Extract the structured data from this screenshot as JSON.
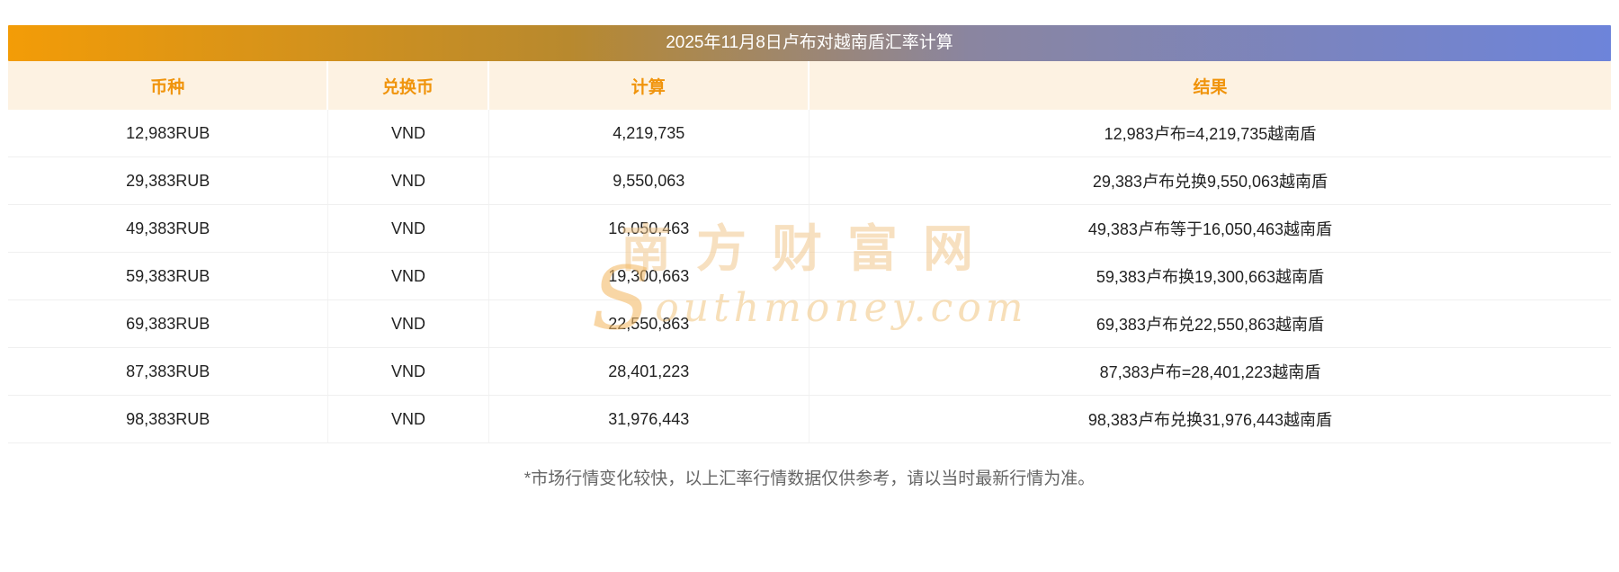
{
  "page_title": "2025年11月8日卢布对越南盾汇率计算",
  "chart_data": {
    "type": "table",
    "title": "2025年11月8日卢布对越南盾汇率计算",
    "columns": [
      "币种",
      "兑换币",
      "计算",
      "结果"
    ],
    "rows": [
      [
        "12,983RUB",
        "VND",
        "4,219,735",
        "12,983卢布=4,219,735越南盾"
      ],
      [
        "29,383RUB",
        "VND",
        "9,550,063",
        "29,383卢布兑换9,550,063越南盾"
      ],
      [
        "49,383RUB",
        "VND",
        "16,050,463",
        "49,383卢布等于16,050,463越南盾"
      ],
      [
        "59,383RUB",
        "VND",
        "19,300,663",
        "59,383卢布换19,300,663越南盾"
      ],
      [
        "69,383RUB",
        "VND",
        "22,550,863",
        "69,383卢布兑22,550,863越南盾"
      ],
      [
        "87,383RUB",
        "VND",
        "28,401,223",
        "87,383卢布=28,401,223越南盾"
      ],
      [
        "98,383RUB",
        "VND",
        "31,976,443",
        "98,383卢布兑换31,976,443越南盾"
      ]
    ]
  },
  "footnote": "*市场行情变化较快，以上汇率行情数据仅供参考，请以当时最新行情为准。",
  "watermark": {
    "cjk": "南方财富网",
    "latin_initial": "S",
    "latin_rest": "outhmoney.com"
  },
  "colors": {
    "gradient_start": "#f39c07",
    "gradient_end": "#6d84da",
    "header_bg": "#fdf2e2",
    "header_text": "#f0940c",
    "body_text": "#222222",
    "footnote_text": "#666666",
    "watermark": "#f0c68c",
    "row_border": "#f0f0f0"
  }
}
